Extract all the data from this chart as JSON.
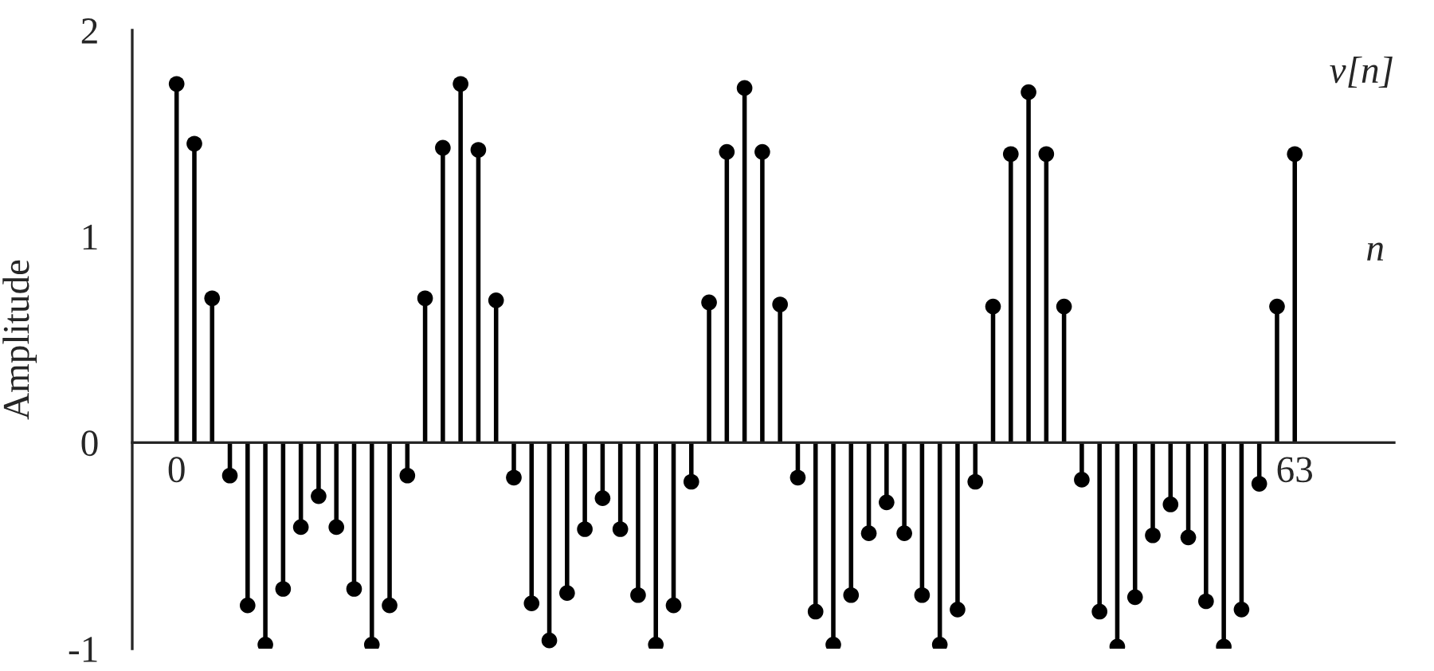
{
  "chart_data": {
    "type": "lollipop",
    "ylabel": "Amplitude",
    "xlabel": "n",
    "annotations": [
      "v[n]"
    ],
    "x": [
      0,
      1,
      2,
      3,
      4,
      5,
      6,
      7,
      8,
      9,
      10,
      11,
      12,
      13,
      14,
      15,
      16,
      17,
      18,
      19,
      20,
      21,
      22,
      23,
      24,
      25,
      26,
      27,
      28,
      29,
      30,
      31,
      32,
      33,
      34,
      35,
      36,
      37,
      38,
      39,
      40,
      41,
      42,
      43,
      44,
      45,
      46,
      47,
      48,
      49,
      50,
      51,
      52,
      53,
      54,
      55,
      56,
      57,
      58,
      59,
      60,
      61,
      62,
      63
    ],
    "series": [
      {
        "color": "#000000",
        "values": [
          1.74,
          1.45,
          0.7,
          -0.16,
          -0.79,
          -0.98,
          -0.71,
          -0.41,
          -0.26,
          -0.41,
          -0.71,
          -0.98,
          -0.79,
          -0.16,
          0.7,
          1.43,
          1.74,
          1.42,
          0.69,
          -0.17,
          -0.78,
          -0.96,
          -0.73,
          -0.42,
          -0.27,
          -0.42,
          -0.74,
          -0.98,
          -0.79,
          -0.19,
          0.68,
          1.41,
          1.72,
          1.41,
          0.67,
          -0.17,
          -0.82,
          -0.98,
          -0.74,
          -0.44,
          -0.29,
          -0.44,
          -0.74,
          -0.98,
          -0.81,
          -0.19,
          0.66,
          1.4,
          1.7,
          1.4,
          0.66,
          -0.18,
          -0.82,
          -0.99,
          -0.75,
          -0.45,
          -0.3,
          -0.46,
          -0.77,
          -0.99,
          -0.81,
          -0.2,
          0.66,
          1.4
        ]
      }
    ],
    "marker": "circle",
    "xlim": [
      -2.5,
      68.6
    ],
    "xticks": [
      0,
      63
    ],
    "ylim": [
      -1,
      2
    ],
    "yticks": [
      -1,
      0,
      1,
      2
    ]
  }
}
